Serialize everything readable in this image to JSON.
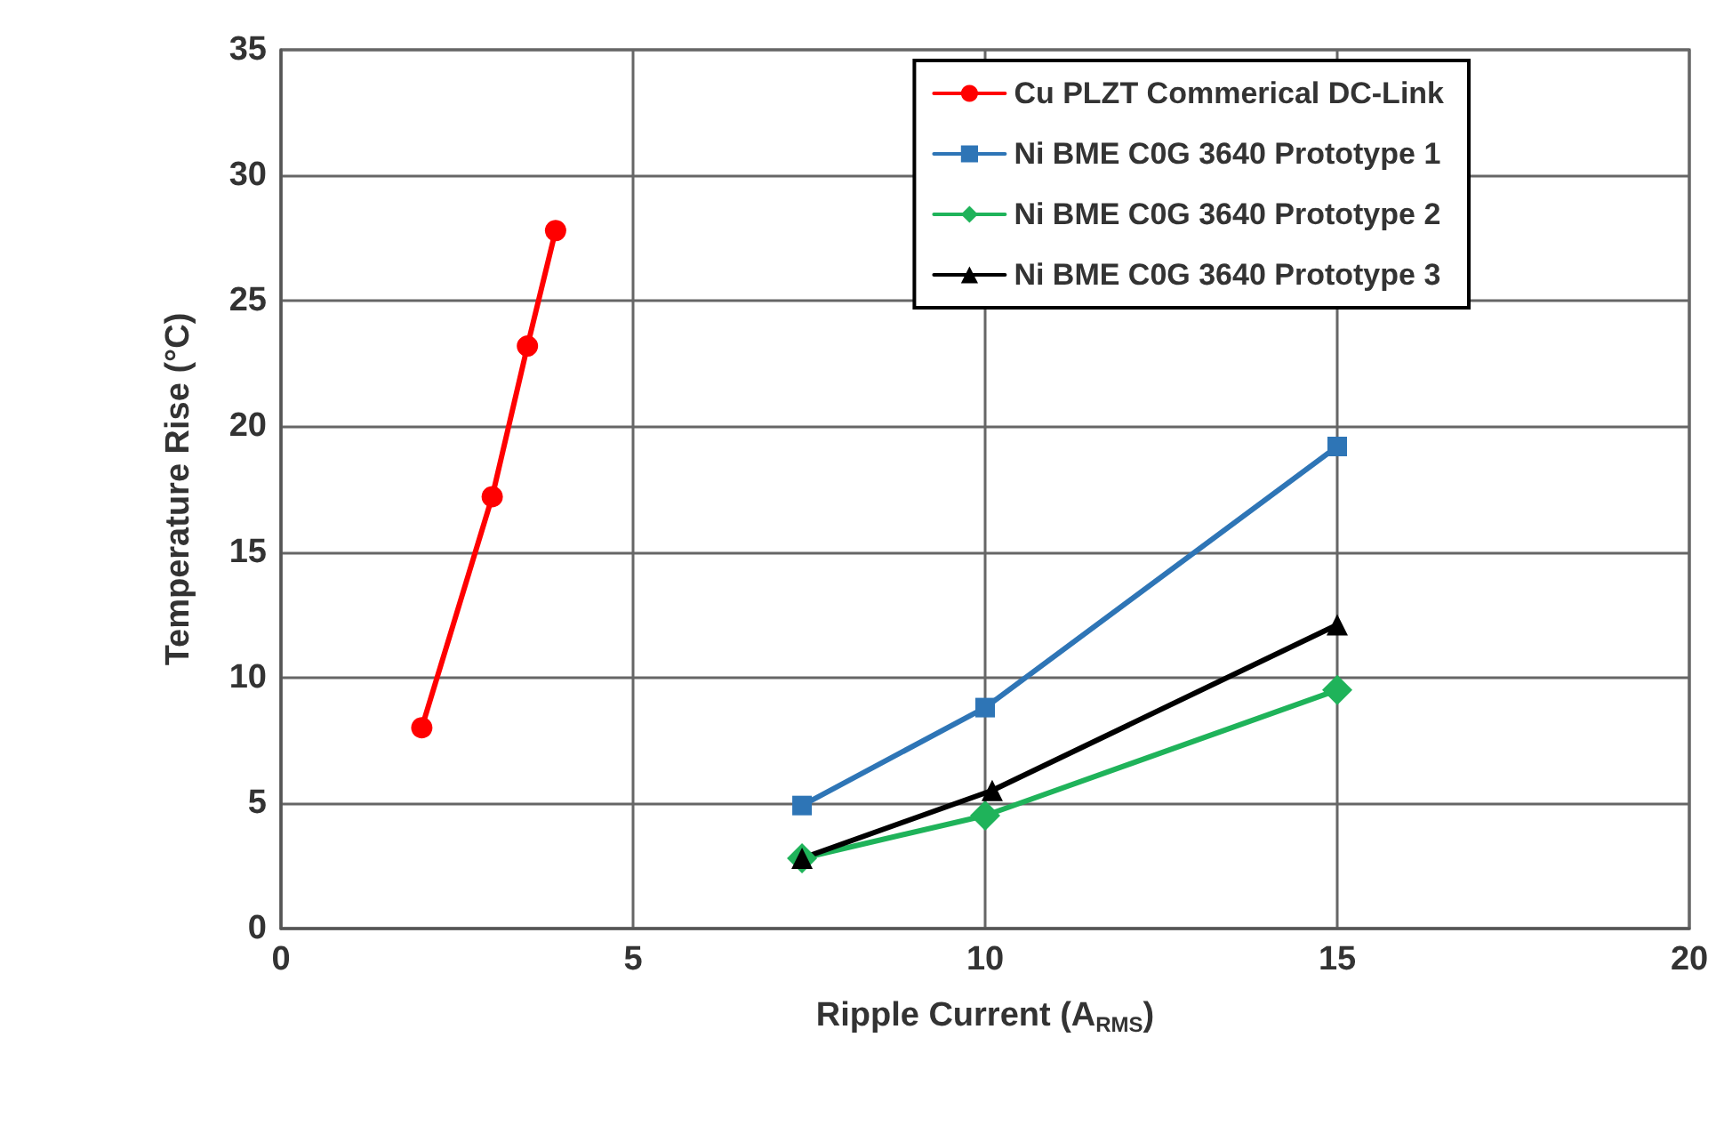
{
  "chart_data": {
    "type": "line",
    "xlabel": "Ripple Current (A$_{RMS}$)",
    "ylabel": "Temperature Rise (°C)",
    "xlim": [
      0,
      20
    ],
    "xticks": [
      0,
      5,
      10,
      15,
      20
    ],
    "ylim": [
      0,
      35
    ],
    "yticks": [
      0,
      5,
      10,
      15,
      20,
      25,
      30,
      35
    ],
    "grid": true,
    "legend": "top right",
    "line_style": "solid",
    "series": [
      {
        "name": "Cu PLZT Commerical DC-Link",
        "color": "#ff0000",
        "marker": "circle",
        "x": [
          2.0,
          3.0,
          3.5,
          3.9
        ],
        "values": [
          8.0,
          17.2,
          23.2,
          27.8
        ]
      },
      {
        "name": "Ni BME C0G 3640 Prototype 1",
        "color": "#2e75b6",
        "marker": "square",
        "x": [
          7.4,
          10,
          15
        ],
        "values": [
          4.9,
          8.8,
          19.2
        ]
      },
      {
        "name": "Ni BME C0G 3640 Prototype 2",
        "color": "#1fb35a",
        "marker": "diamond",
        "x": [
          7.4,
          10,
          15
        ],
        "values": [
          2.8,
          4.5,
          9.5
        ]
      },
      {
        "name": "Ni BME C0G 3640 Prototype 3",
        "color": "#000000",
        "marker": "triangle",
        "x": [
          7.4,
          10.1,
          15
        ],
        "values": [
          2.8,
          5.5,
          12.1
        ]
      }
    ]
  }
}
